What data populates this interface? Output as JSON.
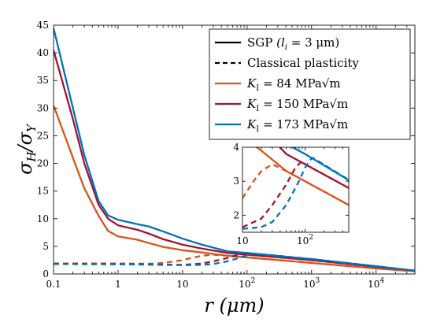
{
  "chart_data": {
    "type": "line",
    "x_scale": "log",
    "xlabel": "r (μm)",
    "ylabel": "σH/σY",
    "xlim": [
      0.1,
      40000
    ],
    "ylim": [
      0,
      45
    ],
    "x_ticks": [
      {
        "value": 0.1,
        "label": "0.1"
      },
      {
        "value": 1,
        "label": "1"
      },
      {
        "value": 10,
        "label": "10"
      },
      {
        "value": 100,
        "label": "10",
        "sup": "2"
      },
      {
        "value": 1000,
        "label": "10",
        "sup": "3"
      },
      {
        "value": 10000,
        "label": "10",
        "sup": "4"
      }
    ],
    "y_ticks": [
      0,
      5,
      10,
      15,
      20,
      25,
      30,
      35,
      40,
      45
    ],
    "legend": {
      "placement": "top-right",
      "entries": [
        {
          "label": "SGP",
          "label_extra": "(l",
          "sub": "i",
          "label_end": " = 3 μm)",
          "style": "solid",
          "color": "#000000"
        },
        {
          "label": "Classical plasticity",
          "style": "dashed",
          "color": "#000000"
        },
        {
          "label": "K",
          "sub": "I",
          "label_end": " = 84 MPa√m",
          "style": "solid",
          "color": "#D95319"
        },
        {
          "label": "K",
          "sub": "I",
          "label_end": " = 150 MPa√m",
          "style": "solid",
          "color": "#A2142F"
        },
        {
          "label": "K",
          "sub": "I",
          "label_end": " = 173 MPa√m",
          "style": "solid",
          "color": "#0072BD"
        }
      ]
    },
    "series": [
      {
        "name": "SGP, K_I = 84 MPa√m",
        "style": "solid",
        "color": "#D95319",
        "x": [
          0.1,
          0.2,
          0.3,
          0.5,
          0.7,
          1,
          2,
          3,
          5,
          10,
          20,
          50,
          100,
          1000,
          10000,
          40000
        ],
        "y": [
          30.5,
          21,
          15.5,
          10.5,
          7.8,
          6.8,
          6.2,
          5.6,
          4.9,
          4.3,
          3.9,
          3.3,
          3.0,
          2.0,
          1.0,
          0.5
        ]
      },
      {
        "name": "SGP, K_I = 150 MPa√m",
        "style": "solid",
        "color": "#A2142F",
        "x": [
          0.1,
          0.2,
          0.3,
          0.5,
          0.7,
          1,
          2,
          3,
          5,
          10,
          20,
          50,
          100,
          1000,
          10000,
          40000
        ],
        "y": [
          40.5,
          28,
          20,
          12.5,
          10.0,
          8.8,
          8.0,
          7.3,
          6.3,
          5.3,
          4.6,
          3.8,
          3.5,
          2.5,
          1.3,
          0.6
        ]
      },
      {
        "name": "SGP, K_I = 173 MPa√m",
        "style": "solid",
        "color": "#0072BD",
        "x": [
          0.1,
          0.2,
          0.3,
          0.5,
          0.7,
          1,
          2,
          3,
          5,
          10,
          20,
          50,
          100,
          1000,
          10000,
          40000
        ],
        "y": [
          44.5,
          30,
          21.5,
          13.2,
          10.6,
          9.8,
          9.0,
          8.6,
          7.7,
          6.4,
          5.3,
          4.1,
          3.8,
          2.7,
          1.4,
          0.6
        ]
      },
      {
        "name": "Classical, K_I = 84 MPa√m",
        "style": "dashed",
        "color": "#D95319",
        "x": [
          0.1,
          0.5,
          1,
          3,
          5,
          10,
          15,
          20,
          30,
          50,
          100,
          1000,
          10000,
          40000
        ],
        "y": [
          1.9,
          1.9,
          1.9,
          1.85,
          2.0,
          2.5,
          3.0,
          3.3,
          3.5,
          3.3,
          3.0,
          2.0,
          1.0,
          0.5
        ]
      },
      {
        "name": "Classical, K_I = 150 MPa√m",
        "style": "dashed",
        "color": "#A2142F",
        "x": [
          0.1,
          1,
          5,
          10,
          20,
          30,
          50,
          70,
          90,
          100,
          1000,
          10000,
          40000
        ],
        "y": [
          1.85,
          1.8,
          1.7,
          1.65,
          1.9,
          2.3,
          2.9,
          3.4,
          3.6,
          3.5,
          2.5,
          1.3,
          0.6
        ]
      },
      {
        "name": "Classical, K_I = 173 MPa√m",
        "style": "dashed",
        "color": "#0072BD",
        "x": [
          0.1,
          1,
          10,
          20,
          30,
          50,
          80,
          100,
          130,
          1000,
          10000,
          40000
        ],
        "y": [
          1.8,
          1.75,
          1.6,
          1.65,
          1.8,
          2.3,
          3.0,
          3.4,
          3.7,
          2.7,
          1.4,
          0.6
        ]
      }
    ],
    "inset": {
      "xlim": [
        10,
        500
      ],
      "ylim": [
        1.5,
        4
      ],
      "x_ticks": [
        {
          "value": 10,
          "label": "10"
        },
        {
          "value": 100,
          "label": "10",
          "sup": "2"
        }
      ],
      "y_ticks": [
        2,
        3,
        4
      ]
    }
  }
}
